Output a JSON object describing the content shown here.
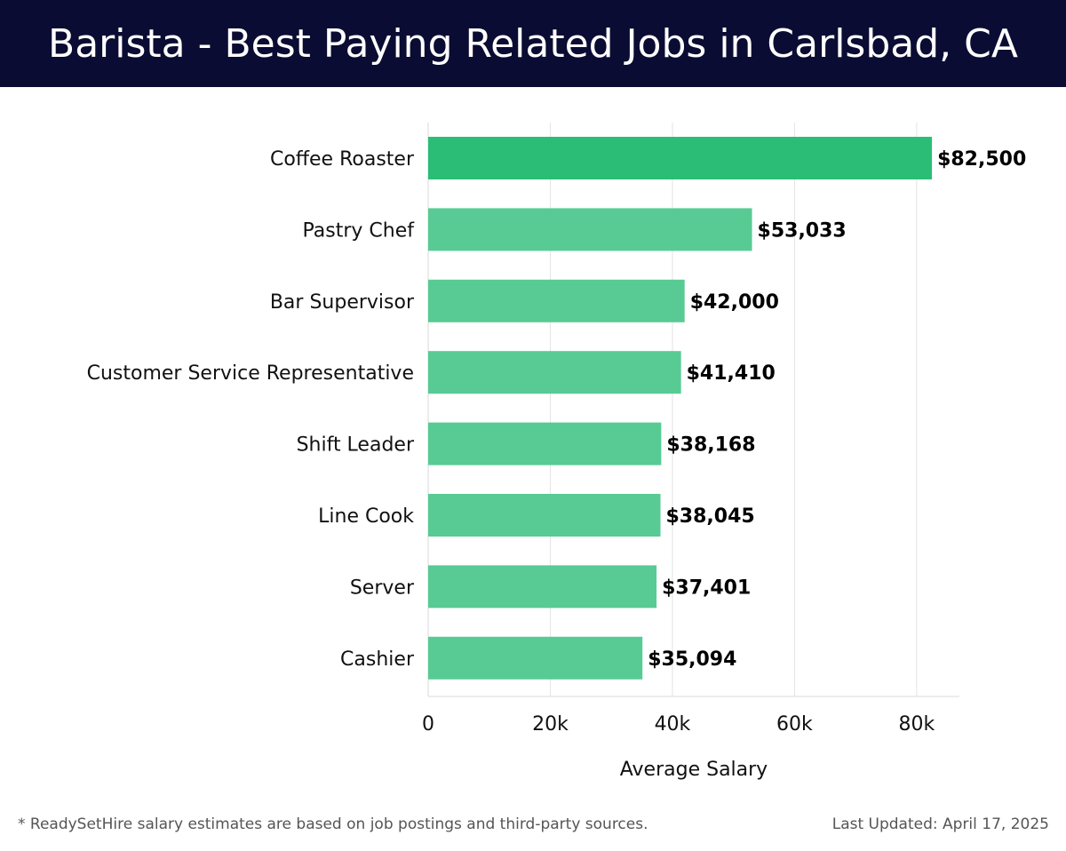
{
  "header": {
    "title": "Barista - Best Paying Related Jobs in Carlsbad, CA"
  },
  "chart_data": {
    "type": "bar",
    "orientation": "horizontal",
    "title": "Barista - Best Paying Related Jobs in Carlsbad, CA",
    "categories": [
      "Coffee Roaster",
      "Pastry Chef",
      "Bar Supervisor",
      "Customer Service Representative",
      "Shift Leader",
      "Line Cook",
      "Server",
      "Cashier"
    ],
    "values": [
      82500,
      53033,
      42000,
      41410,
      38168,
      38045,
      37401,
      35094
    ],
    "value_labels": [
      "$82,500",
      "$53,033",
      "$42,000",
      "$41,410",
      "$38,168",
      "$38,045",
      "$37,401",
      "$35,094"
    ],
    "xlabel": "Average Salary",
    "ylabel": "",
    "xlim": [
      0,
      87000
    ],
    "xticks": [
      0,
      20000,
      40000,
      60000,
      80000
    ],
    "xtick_labels": [
      "0",
      "20k",
      "40k",
      "60k",
      "80k"
    ],
    "grid": true,
    "colors": {
      "highlight": "#2bbd76",
      "bar": "#57cb93",
      "grid": "#e3e3e3",
      "header_bg": "#0b0c33"
    }
  },
  "footer": {
    "note": "* ReadySetHire salary estimates are based on job postings and third-party sources.",
    "updated": "Last Updated: April 17, 2025"
  }
}
